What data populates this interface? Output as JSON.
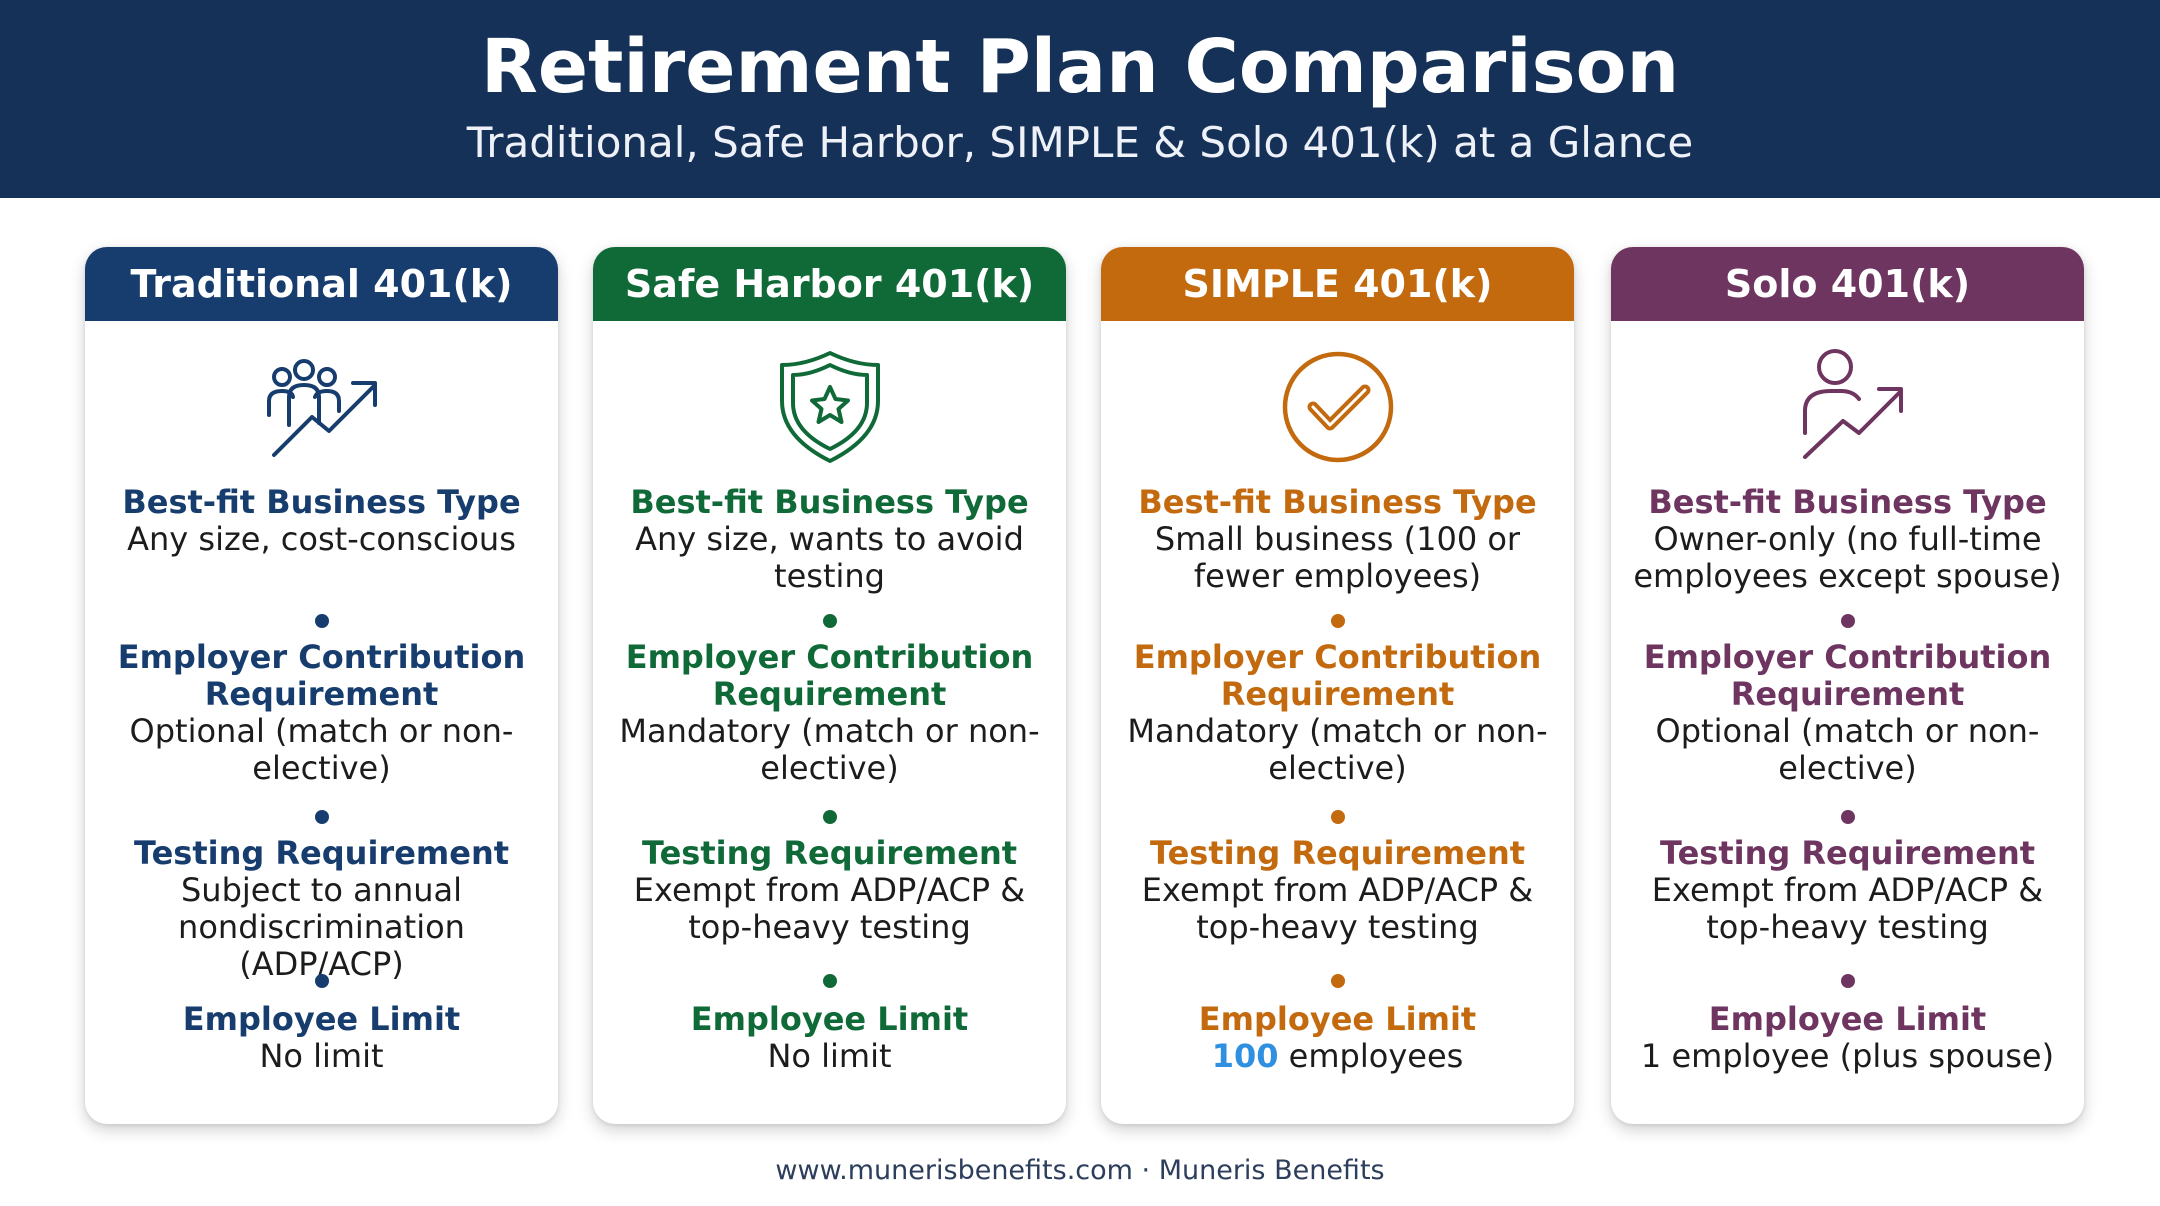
{
  "header": {
    "title": "Retirement Plan Comparison",
    "subtitle": "Traditional, Safe Harbor, SIMPLE & Solo 401(k) at a Glance",
    "background": "#163158"
  },
  "labels": {
    "business_type": "Best-fit Business Type",
    "employer_contribution": "Employer Contribution Requirement",
    "testing": "Testing Requirement",
    "employee_limit": "Employee Limit"
  },
  "plans": [
    {
      "name": "Traditional 401(k)",
      "color": "#163d6e",
      "icon": "people-growth-icon",
      "business_type": "Any size, cost-conscious",
      "employer_contribution": "Optional (match or non-elective)",
      "testing": "Subject to annual nondiscrimination (ADP/ACP)",
      "employee_limit": "No limit"
    },
    {
      "name": "Safe Harbor 401(k)",
      "color": "#0f6a38",
      "icon": "shield-star-icon",
      "business_type": "Any size, wants to avoid testing",
      "employer_contribution": "Mandatory (match or non-elective)",
      "testing": "Exempt from ADP/ACP & top-heavy testing",
      "employee_limit": "No limit"
    },
    {
      "name": "SIMPLE 401(k)",
      "color": "#c3690e",
      "icon": "check-circle-icon",
      "business_type": "Small business (100 or fewer employees)",
      "employer_contribution": "Mandatory (match or non-elective)",
      "testing": "Exempt from ADP/ACP & top-heavy testing",
      "employee_limit_number": "100",
      "employee_limit": "employees",
      "highlight_color": "#2f8fe0"
    },
    {
      "name": "Solo 401(k)",
      "color": "#6d3560",
      "icon": "person-growth-icon",
      "business_type": "Owner-only (no full-time employees except spouse)",
      "employer_contribution": "Optional (match or non-elective)",
      "testing": "Exempt from ADP/ACP & top-heavy testing",
      "employee_limit": "1 employee (plus spouse)"
    }
  ],
  "footer": {
    "text": "www.munerisbenefits.com · Muneris Benefits"
  }
}
